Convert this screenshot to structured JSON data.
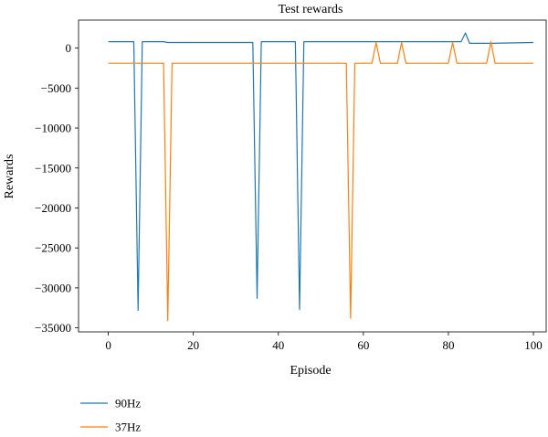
{
  "chart_data": {
    "type": "line",
    "title": "Test rewards",
    "xlabel": "Episode",
    "ylabel": "Rewards",
    "xlim": [
      -7,
      103
    ],
    "ylim": [
      -35500,
      3500
    ],
    "xticks": [
      0,
      20,
      40,
      60,
      80,
      100
    ],
    "xtick_labels": [
      "0",
      "20",
      "40",
      "60",
      "80",
      "100"
    ],
    "yticks": [
      0,
      -5000,
      -10000,
      -15000,
      -20000,
      -25000,
      -30000,
      -35000
    ],
    "ytick_labels": [
      "0",
      "−5000",
      "−10000",
      "−15000",
      "−20000",
      "−25000",
      "−30000",
      "−35000"
    ],
    "grid": false,
    "legend_position": "bottom-left, below plot",
    "series": [
      {
        "name": "90Hz",
        "color": "#1f77b4",
        "points": [
          [
            0,
            800
          ],
          [
            6,
            800
          ],
          [
            7,
            -32800
          ],
          [
            8,
            800
          ],
          [
            13,
            800
          ],
          [
            14,
            700
          ],
          [
            15,
            700
          ],
          [
            34,
            700
          ],
          [
            35,
            -31300
          ],
          [
            36,
            800
          ],
          [
            44,
            800
          ],
          [
            45,
            -32700
          ],
          [
            46,
            800
          ],
          [
            83,
            800
          ],
          [
            84,
            1900
          ],
          [
            85,
            600
          ],
          [
            90,
            600
          ],
          [
            100,
            700
          ]
        ]
      },
      {
        "name": "37Hz",
        "color": "#ff7f0e",
        "points": [
          [
            0,
            -1900
          ],
          [
            13,
            -1900
          ],
          [
            14,
            -34100
          ],
          [
            15,
            -1900
          ],
          [
            56,
            -1900
          ],
          [
            57,
            -33800
          ],
          [
            58,
            -1900
          ],
          [
            62,
            -1900
          ],
          [
            63,
            700
          ],
          [
            64,
            -1900
          ],
          [
            68,
            -1900
          ],
          [
            69,
            700
          ],
          [
            70,
            -1900
          ],
          [
            80,
            -1900
          ],
          [
            81,
            700
          ],
          [
            82,
            -1900
          ],
          [
            89,
            -1900
          ],
          [
            90,
            800
          ],
          [
            91,
            -1900
          ],
          [
            100,
            -1900
          ]
        ]
      }
    ]
  }
}
